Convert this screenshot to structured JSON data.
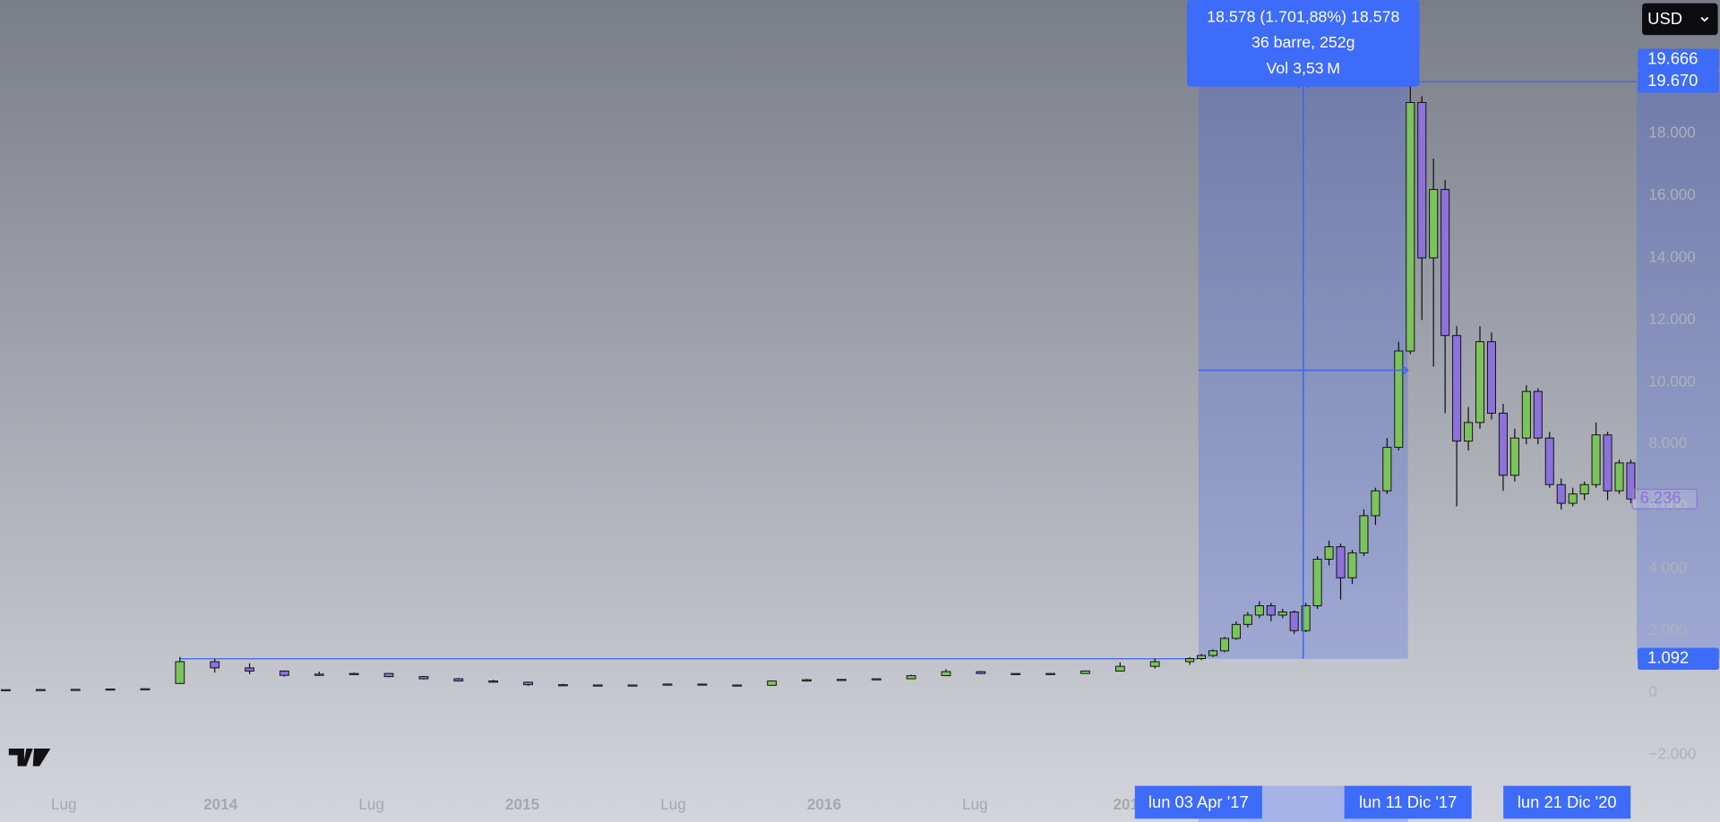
{
  "chart_data": {
    "type": "candlestick",
    "currency": "USD",
    "xlim": [
      -1,
      281
    ],
    "ylim": [
      -4160,
      22300
    ],
    "xticks": [
      {
        "value": 10,
        "label": "Lug"
      },
      {
        "value": 37,
        "label": "2014"
      },
      {
        "value": 63,
        "label": "Lug"
      },
      {
        "value": 89,
        "label": "2015"
      },
      {
        "value": 115,
        "label": "Lug"
      },
      {
        "value": 141,
        "label": "2016"
      },
      {
        "value": 167,
        "label": "Lug"
      },
      {
        "value": 193,
        "label": "201"
      }
    ],
    "yticks": [
      {
        "value": 18000,
        "label": "18.000"
      },
      {
        "value": 16000,
        "label": "16.000"
      },
      {
        "value": 14000,
        "label": "14.000"
      },
      {
        "value": 12000,
        "label": "12.000"
      },
      {
        "value": 10000,
        "label": "10.000"
      },
      {
        "value": 8000,
        "label": "8.000"
      },
      {
        "value": 6000,
        "label": "6.000"
      },
      {
        "value": 4000,
        "label": "4.000"
      },
      {
        "value": 2000,
        "label": "2.000"
      },
      0,
      {
        "value": -2000,
        "label": "−2.000"
      }
    ],
    "up_color": "#7cc35c",
    "down_color": "#8d72dc",
    "x": [
      0,
      6,
      12,
      18,
      24,
      30,
      36,
      42,
      48,
      54,
      60,
      66,
      72,
      78,
      84,
      90,
      96,
      102,
      108,
      114,
      120,
      126,
      132,
      138,
      144,
      150,
      156,
      162,
      168,
      174,
      180,
      186,
      192,
      198,
      204,
      206,
      208,
      210,
      212,
      214,
      216,
      218,
      220,
      222,
      224,
      226,
      228,
      230,
      232,
      234,
      236,
      238,
      240,
      242,
      244,
      246,
      248,
      250,
      252,
      254,
      256,
      258,
      260,
      262,
      264,
      266,
      268,
      270,
      272,
      274,
      276,
      278,
      280
    ],
    "open": [
      95,
      100,
      105,
      110,
      120,
      300,
      1000,
      800,
      700,
      560,
      600,
      620,
      520,
      450,
      380,
      340,
      260,
      250,
      230,
      250,
      280,
      250,
      240,
      380,
      420,
      430,
      450,
      550,
      680,
      620,
      600,
      620,
      700,
      850,
      1000,
      1100,
      1200,
      1350,
      1750,
      2200,
      2500,
      2800,
      2500,
      2600,
      2000,
      2800,
      4300,
      4700,
      3700,
      4500,
      5700,
      6500,
      7900,
      11000,
      19000,
      14000,
      16200,
      11500,
      8100,
      8700,
      11300,
      9000,
      7000,
      8200,
      9700,
      8200,
      6700,
      6100,
      6400,
      6700,
      8300,
      6500,
      7400
    ],
    "high": [
      105,
      110,
      115,
      125,
      140,
      1150,
      1100,
      950,
      720,
      680,
      650,
      630,
      540,
      480,
      420,
      360,
      290,
      260,
      260,
      300,
      290,
      260,
      400,
      450,
      440,
      460,
      580,
      760,
      700,
      620,
      640,
      720,
      980,
      1100,
      1150,
      1250,
      1400,
      1800,
      2300,
      2600,
      2950,
      2900,
      2700,
      2650,
      2900,
      4400,
      4900,
      4800,
      4600,
      5900,
      6600,
      8200,
      11300,
      19666,
      19200,
      17200,
      16500,
      11800,
      9200,
      11800,
      11600,
      9300,
      8500,
      9900,
      9800,
      8400,
      6900,
      6600,
      6800,
      8700,
      8400,
      7500,
      7500
    ],
    "low": [
      90,
      95,
      100,
      105,
      115,
      280,
      650,
      600,
      520,
      540,
      580,
      500,
      430,
      360,
      320,
      220,
      230,
      210,
      220,
      240,
      240,
      230,
      230,
      360,
      400,
      410,
      440,
      540,
      600,
      580,
      590,
      610,
      690,
      780,
      900,
      1050,
      1150,
      1300,
      1700,
      2100,
      2400,
      2300,
      2400,
      1900,
      1950,
      2700,
      4100,
      3000,
      3500,
      4400,
      5400,
      6400,
      7800,
      10900,
      12000,
      10500,
      9000,
      6000,
      7800,
      8500,
      8800,
      6500,
      6800,
      8000,
      8000,
      6600,
      5900,
      6000,
      6200,
      6600,
      6200,
      6400,
      6100
    ],
    "close": [
      100,
      105,
      110,
      120,
      130,
      1000,
      800,
      700,
      560,
      600,
      620,
      520,
      450,
      380,
      340,
      260,
      250,
      230,
      250,
      280,
      250,
      240,
      380,
      420,
      430,
      450,
      550,
      680,
      620,
      600,
      620,
      700,
      850,
      1000,
      1100,
      1200,
      1350,
      1750,
      2200,
      2500,
      2800,
      2500,
      2600,
      2000,
      2800,
      4300,
      4700,
      3700,
      4500,
      5700,
      6500,
      7900,
      11000,
      19000,
      14000,
      16200,
      11500,
      8100,
      8700,
      11300,
      9000,
      7000,
      8200,
      9700,
      8200,
      6700,
      6100,
      6400,
      6700,
      8300,
      6500,
      7400,
      6236
    ],
    "measure": {
      "from": {
        "x": 205.5,
        "price": 1092,
        "label": "1.092"
      },
      "to": {
        "x": 241.6,
        "price": 19670,
        "label": "19.670"
      },
      "text": [
        "18.578 (1.701,88%) 18.578",
        "36 barre, 252g",
        "Vol 3,53 M"
      ]
    },
    "crosshair_price": {
      "value": 19666,
      "label": "19.666"
    },
    "last_price": {
      "value": 6236,
      "label": "6.236"
    },
    "date_markers": [
      {
        "value": 205.5,
        "label": "lun 03 Apr '17"
      },
      {
        "value": 241.6,
        "label": "lun 11 Dic '17"
      },
      {
        "value": 269,
        "label": "lun 21 Dic '20"
      }
    ]
  }
}
